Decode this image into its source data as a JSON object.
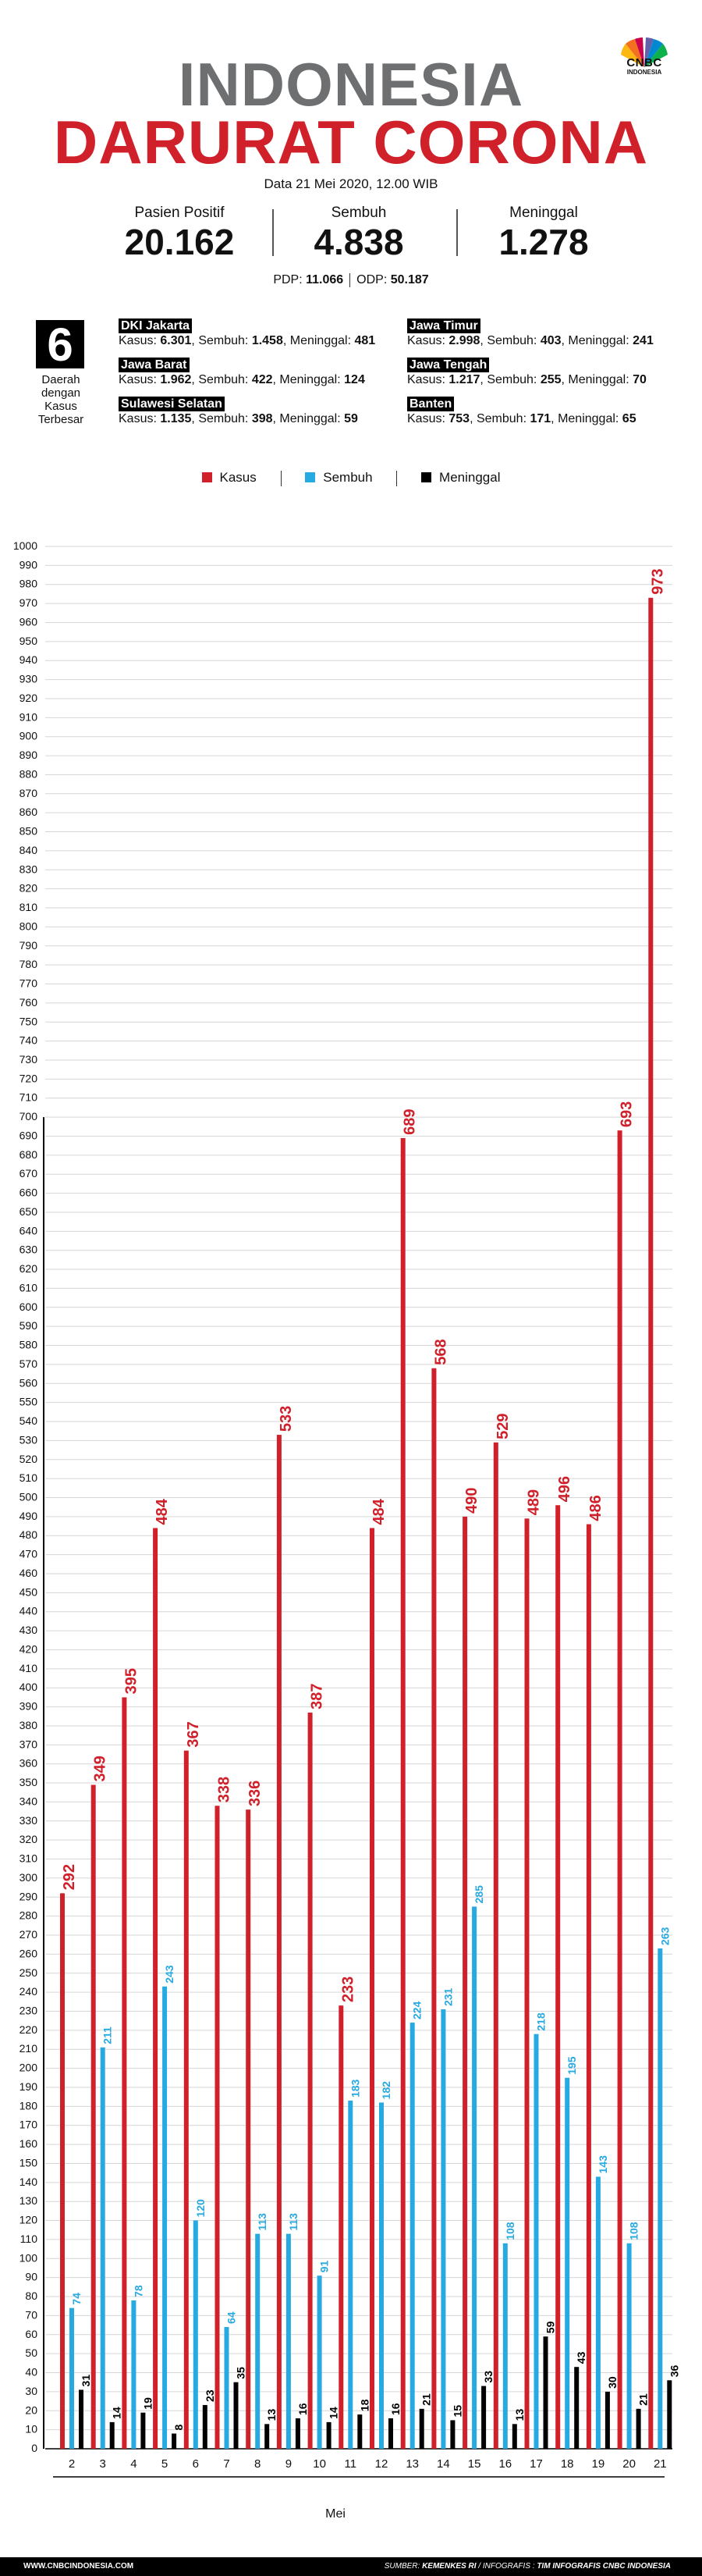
{
  "brand": {
    "name": "CNBC",
    "sub": "INDONESIA"
  },
  "title": {
    "line1": "INDONESIA",
    "line2": "DARURAT CORONA"
  },
  "date": "Data 21 Mei 2020, 12.00 WIB",
  "stats": [
    {
      "label": "Pasien Positif",
      "value": "20.162"
    },
    {
      "label": "Sembuh",
      "value": "4.838"
    },
    {
      "label": "Meninggal",
      "value": "1.278"
    }
  ],
  "pdp": {
    "pdp_label": "PDP:",
    "pdp_value": "11.066",
    "odp_label": "ODP:",
    "odp_value": "50.187"
  },
  "top_regions": {
    "number": "6",
    "caption": [
      "Daerah",
      "dengan",
      "Kasus",
      "Terbesar"
    ],
    "items": [
      {
        "name": "DKI Jakarta",
        "kasus": "6.301",
        "sembuh": "1.458",
        "meninggal": "481"
      },
      {
        "name": "Jawa Timur",
        "kasus": "2.998",
        "sembuh": "403",
        "meninggal": "241"
      },
      {
        "name": "Jawa Barat",
        "kasus": "1.962",
        "sembuh": "422",
        "meninggal": "124"
      },
      {
        "name": "Jawa Tengah",
        "kasus": "1.217",
        "sembuh": "255",
        "meninggal": "70"
      },
      {
        "name": "Sulawesi Selatan",
        "kasus": "1.135",
        "sembuh": "398",
        "meninggal": "59"
      },
      {
        "name": "Banten",
        "kasus": "753",
        "sembuh": "171",
        "meninggal": "65"
      }
    ],
    "labels": {
      "kasus": "Kasus:",
      "sembuh": "Sembuh:",
      "meninggal": "Meninggal:"
    }
  },
  "colors": {
    "kasus": "#d0202a",
    "sembuh": "#27a9e1",
    "meninggal": "#000000",
    "title_gray": "#6d6f71"
  },
  "chart_data": {
    "type": "bar",
    "xlabel": "Mei",
    "ylabel": "",
    "ylim": [
      0,
      1000
    ],
    "ytick_step": 10,
    "grid": true,
    "legend_position": "top-center",
    "categories": [
      "2",
      "3",
      "4",
      "5",
      "6",
      "7",
      "8",
      "9",
      "10",
      "11",
      "12",
      "13",
      "14",
      "15",
      "16",
      "17",
      "18",
      "19",
      "20",
      "21"
    ],
    "series": [
      {
        "name": "Kasus",
        "color": "#d0202a",
        "values": [
          292,
          349,
          395,
          484,
          367,
          338,
          336,
          533,
          387,
          233,
          484,
          689,
          568,
          490,
          529,
          489,
          496,
          486,
          693,
          973
        ]
      },
      {
        "name": "Sembuh",
        "color": "#27a9e1",
        "values": [
          74,
          211,
          78,
          243,
          120,
          64,
          113,
          113,
          91,
          183,
          182,
          224,
          231,
          285,
          108,
          218,
          195,
          143,
          108,
          263
        ]
      },
      {
        "name": "Meninggal",
        "color": "#000000",
        "values": [
          31,
          14,
          19,
          8,
          23,
          35,
          13,
          16,
          14,
          18,
          16,
          21,
          15,
          33,
          13,
          59,
          43,
          30,
          21,
          36
        ]
      }
    ]
  },
  "footer": {
    "website": "WWW.CNBCINDONESIA.COM",
    "source_label": "SUMBER:",
    "source": "KEMENKES RI",
    "infographic_label": "INFOGRAFIS :",
    "infographic": "TIM INFOGRAFIS CNBC INDONESIA"
  }
}
